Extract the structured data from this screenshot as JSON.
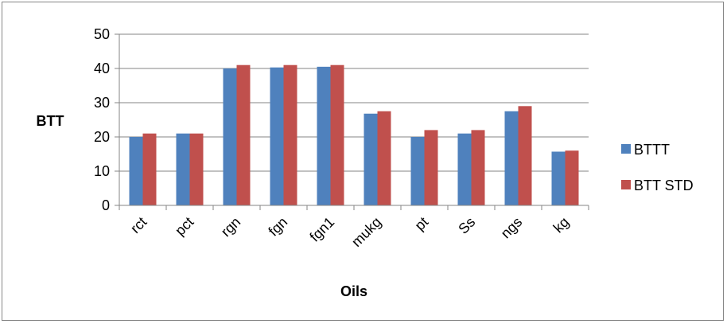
{
  "chart_data": {
    "type": "bar",
    "title": "",
    "xlabel": "Oils",
    "ylabel": "BTT",
    "categories": [
      "rct",
      "pct",
      "rgn",
      "fgn",
      "fgn1",
      "mukg",
      "pt",
      "Ss",
      "ngs",
      "kg"
    ],
    "series": [
      {
        "name": "BTTT",
        "color": "#4F81BD",
        "values": [
          20,
          21,
          40,
          40.3,
          40.5,
          26.8,
          20,
          21,
          27.5,
          15.7
        ]
      },
      {
        "name": "BTT STD",
        "color": "#C0504D",
        "values": [
          21,
          21,
          41,
          41,
          41,
          27.5,
          22,
          22,
          29,
          16
        ]
      }
    ],
    "ylim": [
      0,
      50
    ],
    "yticks": [
      0,
      10,
      20,
      30,
      40,
      50
    ],
    "grid": true,
    "legend_position": "right"
  }
}
